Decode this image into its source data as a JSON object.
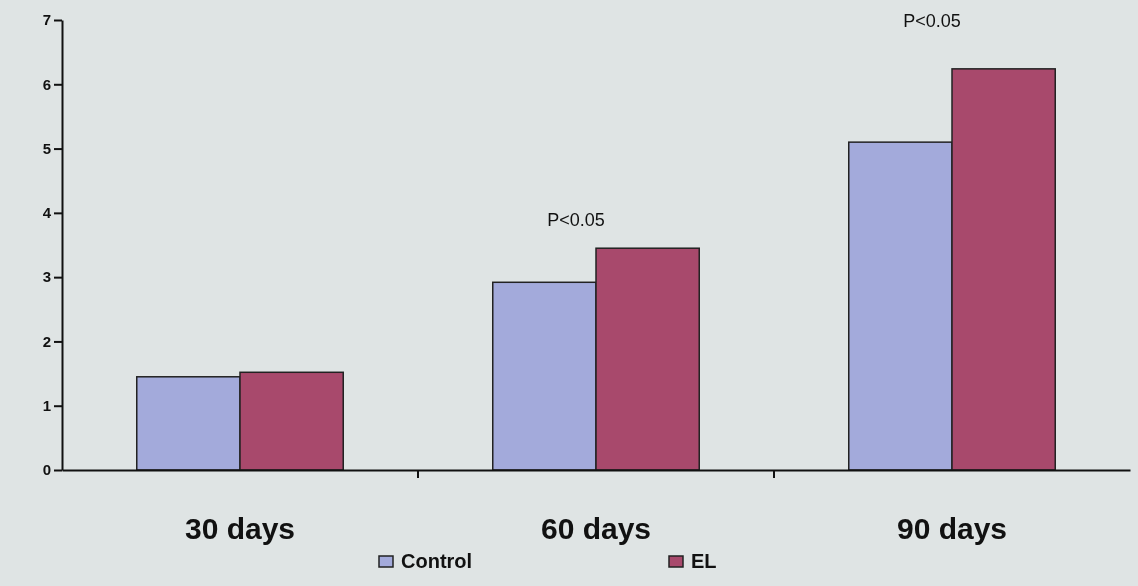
{
  "chart_data": {
    "type": "bar",
    "categories": [
      "30 days",
      "60 days",
      "90 days"
    ],
    "series": [
      {
        "name": "Control",
        "color": "#a3aadb",
        "values": [
          1.45,
          2.92,
          5.1
        ]
      },
      {
        "name": "EL",
        "color": "#a8496c",
        "values": [
          1.52,
          3.45,
          6.24
        ]
      }
    ],
    "ylim": [
      0,
      7
    ],
    "yticks": [
      0,
      1,
      2,
      3,
      4,
      5,
      6,
      7
    ],
    "grid": false,
    "legend": "bottom",
    "annotations": [
      "P<0.05",
      "P<0.05"
    ]
  }
}
